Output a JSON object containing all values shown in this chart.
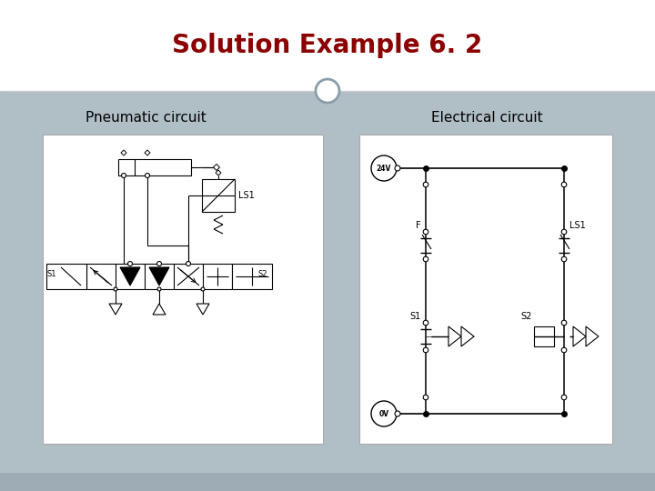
{
  "title": "Solution Example 6. 2",
  "title_color": "#8B0000",
  "title_fontsize": 20,
  "bg_main": "#B0BEC5",
  "bg_header": "#FFFFFF",
  "bg_footer": "#9EADB5",
  "panel_bg": "#FFFFFF",
  "circle_edge": "#8B9EA8",
  "label_left": "Pneumatic circuit",
  "label_right": "Electrical circuit",
  "label_fontsize": 11
}
